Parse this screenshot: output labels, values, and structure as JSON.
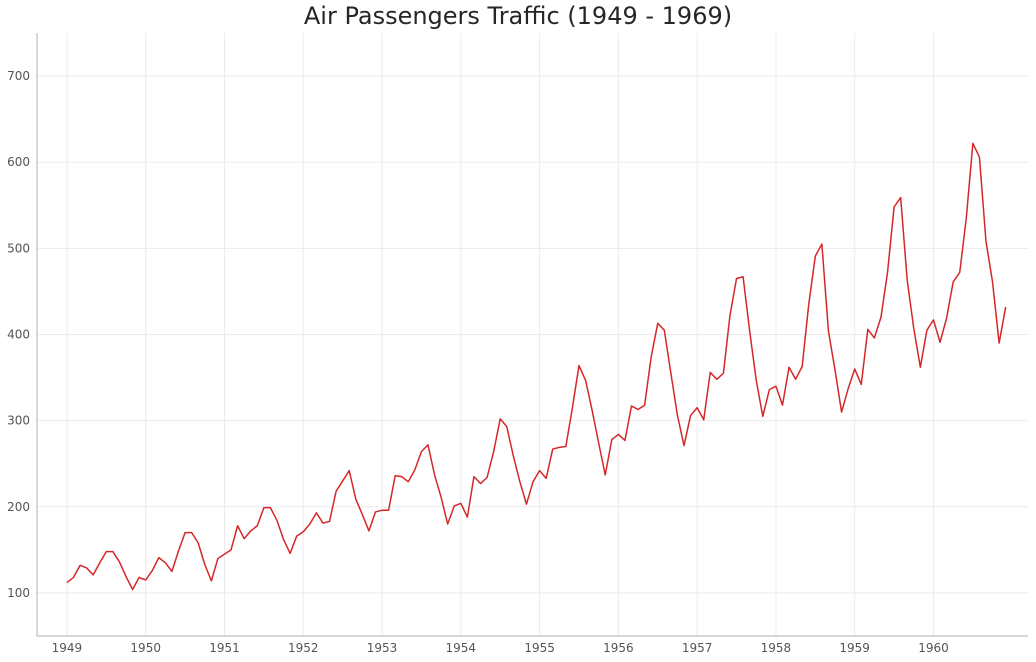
{
  "chart_data": {
    "type": "line",
    "title": "Air Passengers Traffic (1949 - 1969)",
    "xlabel": "",
    "ylabel": "",
    "xlim": [
      1948.62,
      1961.2
    ],
    "ylim": [
      50,
      750
    ],
    "grid": true,
    "x_ticks": [
      "1949",
      "1950",
      "1951",
      "1952",
      "1953",
      "1954",
      "1955",
      "1956",
      "1957",
      "1958",
      "1959",
      "1960"
    ],
    "y_ticks": [
      "100",
      "200",
      "300",
      "400",
      "500",
      "600",
      "700"
    ],
    "series": [
      {
        "color": "#d62728",
        "start_year": 1949,
        "frequency": "monthly",
        "values": [
          112,
          118,
          132,
          129,
          121,
          135,
          148,
          148,
          136,
          119,
          104,
          118,
          115,
          126,
          141,
          135,
          125,
          149,
          170,
          170,
          158,
          133,
          114,
          140,
          145,
          150,
          178,
          163,
          172,
          178,
          199,
          199,
          184,
          162,
          146,
          166,
          171,
          180,
          193,
          181,
          183,
          218,
          230,
          242,
          209,
          191,
          172,
          194,
          196,
          196,
          236,
          235,
          229,
          243,
          264,
          272,
          237,
          211,
          180,
          201,
          204,
          188,
          235,
          227,
          234,
          264,
          302,
          293,
          259,
          229,
          203,
          229,
          242,
          233,
          267,
          269,
          270,
          315,
          364,
          347,
          312,
          274,
          237,
          278,
          284,
          277,
          317,
          313,
          318,
          374,
          413,
          405,
          355,
          306,
          271,
          306,
          315,
          301,
          356,
          348,
          355,
          422,
          465,
          467,
          404,
          347,
          305,
          336,
          340,
          318,
          362,
          348,
          363,
          435,
          491,
          505,
          404,
          359,
          310,
          337,
          360,
          342,
          406,
          396,
          420,
          472,
          548,
          559,
          463,
          407,
          362,
          405,
          417,
          391,
          419,
          461,
          472,
          535,
          622,
          606,
          508,
          461,
          390,
          432
        ]
      }
    ]
  }
}
